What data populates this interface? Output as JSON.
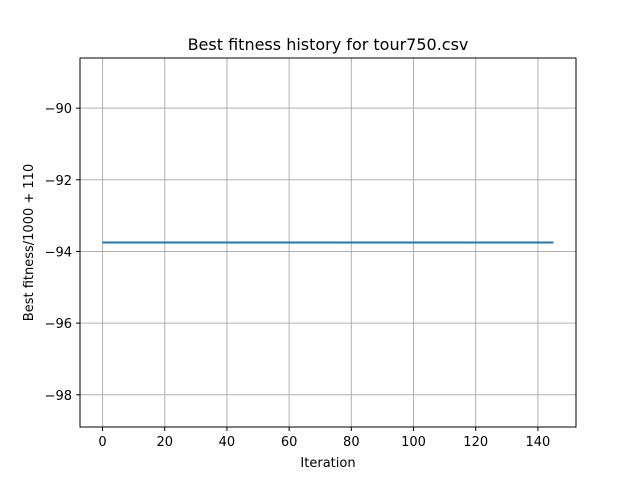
{
  "chart_data": {
    "type": "line",
    "title": "Best fitness history for tour750.csv",
    "xlabel": "Iteration",
    "ylabel": "Best fitness/1000 + 110",
    "xlim": [
      -7.25,
      152.25
    ],
    "ylim": [
      -98.9,
      -88.6
    ],
    "xticks": [
      0,
      20,
      40,
      60,
      80,
      100,
      120,
      140
    ],
    "yticks": [
      -98,
      -96,
      -94,
      -92,
      -90
    ],
    "ytick_labels": [
      "−98",
      "−96",
      "−94",
      "−92",
      "−90"
    ],
    "grid": true,
    "series": [
      {
        "x": [
          0,
          145
        ],
        "y": [
          -93.75,
          -93.75
        ],
        "color": "#1f77b4"
      }
    ]
  }
}
